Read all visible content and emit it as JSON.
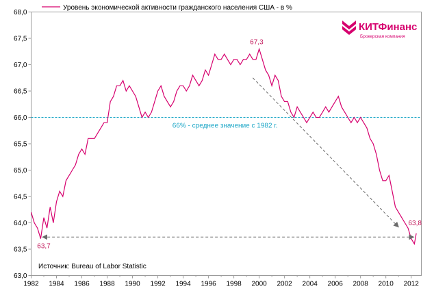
{
  "chart_data": {
    "type": "line",
    "title": "",
    "xlabel": "",
    "ylabel": "",
    "xlim": [
      1982,
      2012.8
    ],
    "ylim": [
      63.0,
      68.0
    ],
    "x_ticks": [
      1982,
      1984,
      1986,
      1988,
      1990,
      1992,
      1994,
      1996,
      1998,
      2000,
      2002,
      2004,
      2006,
      2008,
      2010,
      2012
    ],
    "y_ticks": [
      63.0,
      63.5,
      64.0,
      64.5,
      65.0,
      65.5,
      66.0,
      66.5,
      67.0,
      67.5,
      68.0
    ],
    "x_tick_labels": [
      "1982",
      "1984",
      "1986",
      "1988",
      "1990",
      "1992",
      "1994",
      "1996",
      "1998",
      "2000",
      "2002",
      "2004",
      "2006",
      "2008",
      "2010",
      "2012"
    ],
    "y_tick_labels": [
      "63,0",
      "63,5",
      "64,0",
      "64,5",
      "65,0",
      "65,5",
      "66,0",
      "66,5",
      "67,0",
      "67,5",
      "68,0"
    ],
    "series": [
      {
        "name": "Уровень экономической активности гражданского населения США  - в %",
        "color": "#d6006e",
        "x": [
          1982.0,
          1982.25,
          1982.5,
          1982.75,
          1983.0,
          1983.25,
          1983.5,
          1983.75,
          1984.0,
          1984.25,
          1984.5,
          1984.75,
          1985.0,
          1985.25,
          1985.5,
          1985.75,
          1986.0,
          1986.25,
          1986.5,
          1986.75,
          1987.0,
          1987.25,
          1987.5,
          1987.75,
          1988.0,
          1988.25,
          1988.5,
          1988.75,
          1989.0,
          1989.25,
          1989.5,
          1989.75,
          1990.0,
          1990.25,
          1990.5,
          1990.75,
          1991.0,
          1991.25,
          1991.5,
          1991.75,
          1992.0,
          1992.25,
          1992.5,
          1992.75,
          1993.0,
          1993.25,
          1993.5,
          1993.75,
          1994.0,
          1994.25,
          1994.5,
          1994.75,
          1995.0,
          1995.25,
          1995.5,
          1995.75,
          1996.0,
          1996.25,
          1996.5,
          1996.75,
          1997.0,
          1997.25,
          1997.5,
          1997.75,
          1998.0,
          1998.25,
          1998.5,
          1998.75,
          1999.0,
          1999.25,
          1999.5,
          1999.75,
          2000.0,
          2000.25,
          2000.5,
          2000.75,
          2001.0,
          2001.25,
          2001.5,
          2001.75,
          2002.0,
          2002.25,
          2002.5,
          2002.75,
          2003.0,
          2003.25,
          2003.5,
          2003.75,
          2004.0,
          2004.25,
          2004.5,
          2004.75,
          2005.0,
          2005.25,
          2005.5,
          2005.75,
          2006.0,
          2006.25,
          2006.5,
          2006.75,
          2007.0,
          2007.25,
          2007.5,
          2007.75,
          2008.0,
          2008.25,
          2008.5,
          2008.75,
          2009.0,
          2009.25,
          2009.5,
          2009.75,
          2010.0,
          2010.25,
          2010.5,
          2010.75,
          2011.0,
          2011.25,
          2011.5,
          2011.75,
          2012.0,
          2012.25,
          2012.4
        ],
        "values": [
          64.2,
          64.0,
          63.9,
          63.7,
          64.1,
          63.9,
          64.3,
          64.0,
          64.4,
          64.6,
          64.5,
          64.8,
          64.9,
          65.0,
          65.1,
          65.3,
          65.4,
          65.3,
          65.6,
          65.6,
          65.6,
          65.7,
          65.8,
          65.9,
          65.9,
          66.3,
          66.4,
          66.6,
          66.6,
          66.7,
          66.5,
          66.6,
          66.5,
          66.4,
          66.2,
          66.0,
          66.1,
          66.0,
          66.1,
          66.3,
          66.5,
          66.6,
          66.4,
          66.3,
          66.2,
          66.3,
          66.5,
          66.6,
          66.6,
          66.5,
          66.6,
          66.8,
          66.7,
          66.6,
          66.7,
          66.9,
          66.8,
          67.0,
          67.2,
          67.1,
          67.1,
          67.2,
          67.1,
          67.0,
          67.1,
          67.1,
          67.0,
          67.1,
          67.1,
          67.2,
          67.1,
          67.1,
          67.3,
          67.1,
          66.9,
          66.8,
          66.6,
          66.8,
          66.7,
          66.4,
          66.3,
          66.3,
          66.1,
          66.0,
          66.2,
          66.1,
          66.0,
          65.9,
          66.0,
          66.1,
          66.0,
          66.0,
          66.1,
          66.2,
          66.1,
          66.2,
          66.3,
          66.4,
          66.2,
          66.1,
          66.0,
          65.9,
          66.0,
          65.9,
          66.0,
          65.9,
          65.8,
          65.6,
          65.5,
          65.3,
          65.0,
          64.8,
          64.8,
          64.9,
          64.6,
          64.3,
          64.2,
          64.1,
          64.0,
          63.9,
          63.7,
          63.6,
          63.8
        ]
      }
    ],
    "reference_line": {
      "y": 66.0,
      "label": "66% - среднее значение с 1982 г.",
      "color": "#1ea7c7"
    },
    "annotations": [
      {
        "x": 1983.0,
        "y": 63.7,
        "text": "63,7",
        "color": "#c2185b"
      },
      {
        "x": 1999.8,
        "y": 67.3,
        "text": "67,3",
        "color": "#c2185b"
      },
      {
        "x": 2012.3,
        "y": 63.8,
        "text": "63,8",
        "color": "#c2185b"
      }
    ],
    "arrows": [
      {
        "from": [
          1982.9,
          63.73
        ],
        "to": [
          2012.2,
          63.73
        ],
        "style": "dashed",
        "both_ends": true,
        "color": "#6b6b6b"
      },
      {
        "from": [
          1999.5,
          66.75
        ],
        "to": [
          2011.0,
          63.92
        ],
        "style": "dashed",
        "both_ends": false,
        "color": "#6b6b6b"
      }
    ],
    "legend": {
      "placement": "top-left",
      "label": "Уровень экономической активности гражданского населения США  - в %"
    },
    "source_text": "Источник: Bureau of Labor Statistic"
  },
  "logo": {
    "name": "КИТФинанс",
    "tagline": "Брокерская компания",
    "color": "#d6006e"
  }
}
